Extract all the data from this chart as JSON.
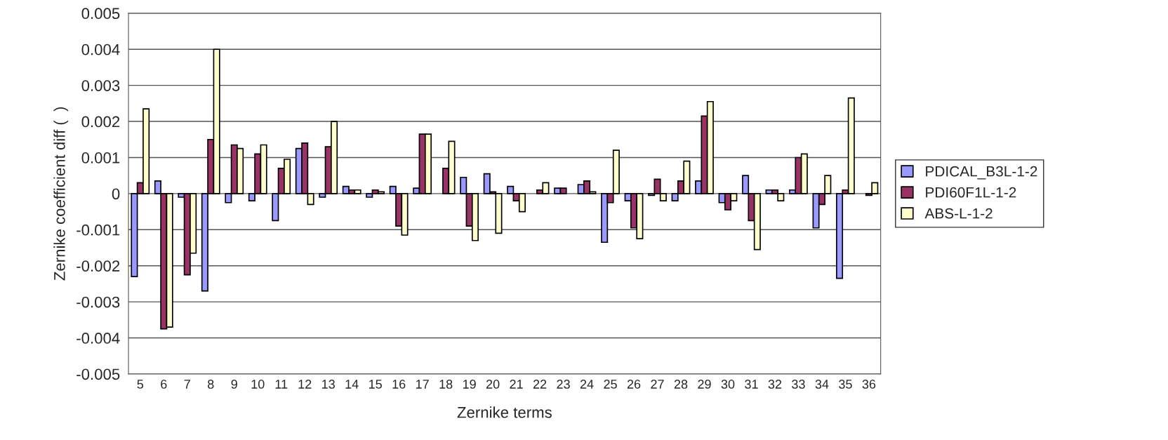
{
  "chart_data": {
    "type": "bar",
    "xlabel": "Zernike terms",
    "ylabel": "Zernike coefficient diff (  )",
    "categories": [
      "5",
      "6",
      "7",
      "8",
      "9",
      "10",
      "11",
      "12",
      "13",
      "14",
      "15",
      "16",
      "17",
      "18",
      "19",
      "20",
      "21",
      "22",
      "23",
      "24",
      "25",
      "26",
      "27",
      "28",
      "29",
      "30",
      "31",
      "32",
      "33",
      "34",
      "35",
      "36"
    ],
    "series": [
      {
        "name": "PDICAL_B3L-1-2",
        "color": "#9999ff",
        "values": [
          -0.0023,
          0.00035,
          -0.0001,
          -0.0027,
          -0.00025,
          -0.0002,
          -0.00075,
          0.00125,
          -0.0001,
          0.0002,
          -0.0001,
          0.0002,
          0.00015,
          0,
          0.00045,
          0.00055,
          0.0002,
          0,
          0.00015,
          0.00025,
          -0.00135,
          -0.0002,
          -5e-05,
          -0.0002,
          0.00035,
          -0.00025,
          0.0005,
          0.0001,
          0.0001,
          -0.00095,
          -0.00235,
          0
        ]
      },
      {
        "name": "PDI60F1L-1-2",
        "color": "#993366",
        "values": [
          0.0003,
          -0.00375,
          -0.00225,
          0.0015,
          0.00135,
          0.0011,
          0.0007,
          0.0014,
          0.0013,
          0.0001,
          0.0001,
          -0.0009,
          0.00165,
          0.0007,
          -0.0009,
          5e-05,
          -0.0002,
          0.0001,
          0.00015,
          0.00035,
          -0.00025,
          -0.00095,
          0.0004,
          0.00035,
          0.00215,
          -0.00045,
          -0.00075,
          0.0001,
          0.001,
          -0.0003,
          0.0001,
          -5e-05
        ]
      },
      {
        "name": "ABS-L-1-2",
        "color": "#ffffcc",
        "values": [
          0.00235,
          -0.0037,
          -0.00165,
          0.004,
          0.00125,
          0.00135,
          0.00095,
          -0.0003,
          0.002,
          0.0001,
          5e-05,
          -0.00115,
          0.00165,
          0.00145,
          -0.0013,
          -0.0011,
          -0.0005,
          0.0003,
          0,
          5e-05,
          0.0012,
          -0.00125,
          -0.0002,
          0.0009,
          0.00255,
          -0.0002,
          -0.00155,
          -0.0002,
          0.0011,
          0.0005,
          0.00265,
          0.0003
        ]
      }
    ],
    "ylim": [
      -0.005,
      0.005
    ],
    "yticks": [
      -0.005,
      -0.004,
      -0.003,
      -0.002,
      -0.001,
      0,
      0.001,
      0.002,
      0.003,
      0.004,
      0.005
    ],
    "grid": "y",
    "legend": "right"
  }
}
